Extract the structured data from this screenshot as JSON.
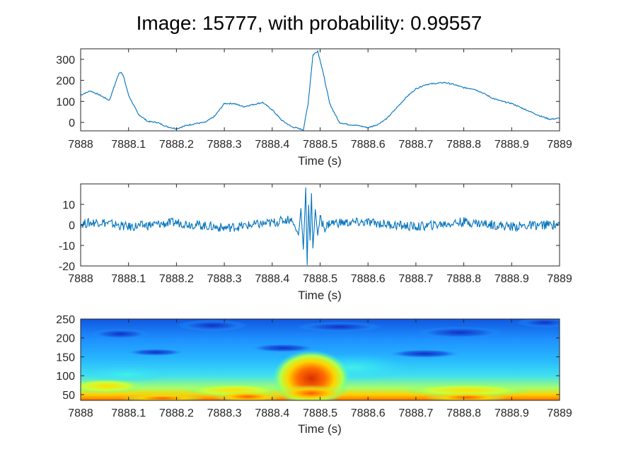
{
  "figure": {
    "title": "Image: 15777, with probability: 0.99557"
  },
  "chart_data": [
    {
      "type": "line",
      "xlabel": "Time (s)",
      "ylabel": "",
      "xlim": [
        7888,
        7889
      ],
      "ylim": [
        -40,
        350
      ],
      "x_ticks": [
        "7888",
        "7888.1",
        "7888.2",
        "7888.3",
        "7888.4",
        "7888.5",
        "7888.6",
        "7888.7",
        "7888.8",
        "7888.9",
        "7889"
      ],
      "y_ticks": [
        0,
        100,
        200,
        300
      ],
      "grid": false,
      "series": [
        {
          "color": "#0072BD",
          "x": [
            7888.0,
            7888.02,
            7888.04,
            7888.06,
            7888.07,
            7888.08,
            7888.085,
            7888.09,
            7888.1,
            7888.12,
            7888.14,
            7888.16,
            7888.18,
            7888.2,
            7888.22,
            7888.24,
            7888.26,
            7888.28,
            7888.3,
            7888.32,
            7888.34,
            7888.36,
            7888.38,
            7888.4,
            7888.42,
            7888.44,
            7888.465,
            7888.475,
            7888.485,
            7888.495,
            7888.505,
            7888.52,
            7888.54,
            7888.56,
            7888.58,
            7888.6,
            7888.62,
            7888.64,
            7888.66,
            7888.68,
            7888.7,
            7888.72,
            7888.74,
            7888.76,
            7888.78,
            7888.8,
            7888.82,
            7888.84,
            7888.86,
            7888.88,
            7888.9,
            7888.92,
            7888.94,
            7888.96,
            7888.98,
            7889.0
          ],
          "y": [
            130,
            150,
            130,
            105,
            170,
            235,
            240,
            215,
            130,
            40,
            5,
            0,
            -20,
            -30,
            -15,
            -5,
            0,
            30,
            90,
            90,
            75,
            85,
            95,
            60,
            10,
            -20,
            -35,
            90,
            320,
            340,
            250,
            90,
            0,
            -10,
            -15,
            -25,
            -10,
            20,
            70,
            120,
            160,
            180,
            185,
            190,
            180,
            165,
            160,
            140,
            115,
            100,
            90,
            70,
            50,
            30,
            15,
            20
          ]
        }
      ]
    },
    {
      "type": "line",
      "xlabel": "Time (s)",
      "ylabel": "",
      "xlim": [
        7888,
        7889
      ],
      "ylim": [
        -20,
        20
      ],
      "x_ticks": [
        "7888",
        "7888.1",
        "7888.2",
        "7888.3",
        "7888.4",
        "7888.5",
        "7888.6",
        "7888.7",
        "7888.8",
        "7888.9",
        "7889"
      ],
      "y_ticks": [
        -20,
        -10,
        0,
        10
      ],
      "grid": false,
      "series": [
        {
          "color": "#0072BD",
          "x": [
            7888.0,
            7888.04,
            7888.1,
            7888.2,
            7888.3,
            7888.4,
            7888.44,
            7888.455,
            7888.46,
            7888.465,
            7888.47,
            7888.473,
            7888.476,
            7888.479,
            7888.482,
            7888.485,
            7888.49,
            7888.495,
            7888.5,
            7888.51,
            7888.52,
            7888.6,
            7888.7,
            7888.8,
            7888.9,
            7889.0
          ],
          "y": [
            0.5,
            1.5,
            -1.0,
            1.2,
            -1.5,
            1.0,
            3.0,
            -5.0,
            8.0,
            -12.0,
            18.0,
            -19.0,
            10.0,
            -8.0,
            15.0,
            -12.0,
            8.0,
            -5.0,
            3.0,
            -1.5,
            1.0,
            1.2,
            -1.0,
            1.5,
            -0.8,
            0.3
          ]
        }
      ]
    },
    {
      "type": "heatmap",
      "xlabel": "Time (s)",
      "ylabel": "",
      "xlim": [
        7888,
        7889
      ],
      "ylim": [
        35,
        250
      ],
      "x_ticks": [
        "7888",
        "7888.1",
        "7888.2",
        "7888.3",
        "7888.4",
        "7888.5",
        "7888.6",
        "7888.7",
        "7888.8",
        "7888.9",
        "7889"
      ],
      "y_ticks": [
        50,
        100,
        150,
        200,
        250
      ],
      "colormap": "jet",
      "grid": false
    }
  ]
}
